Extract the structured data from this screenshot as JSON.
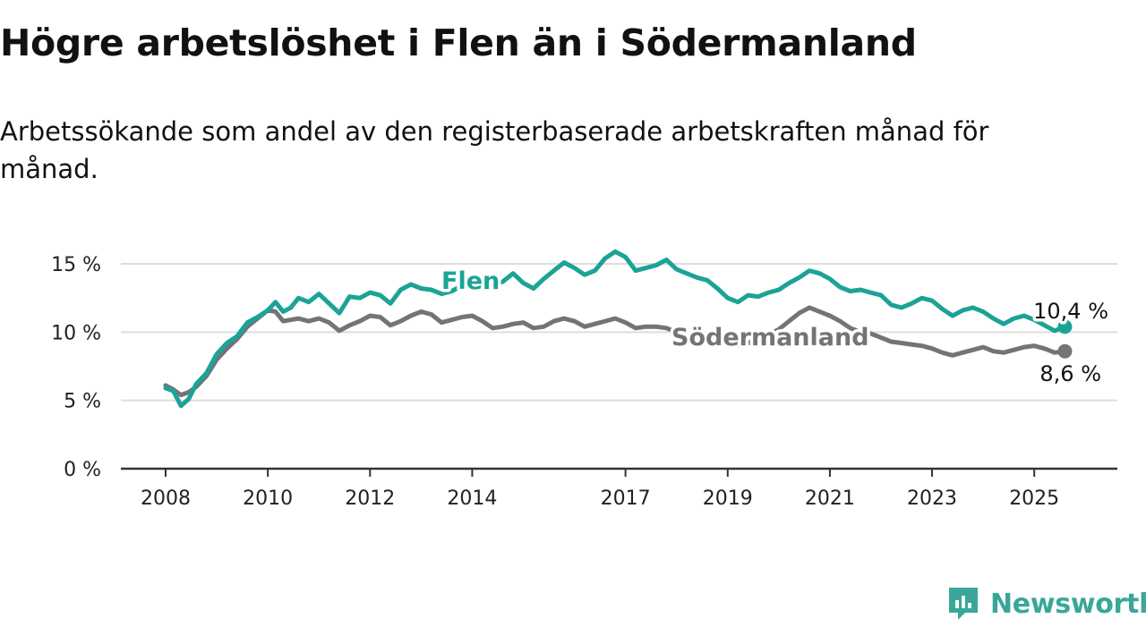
{
  "header": {
    "title": "Högre arbetslöshet i Flen än i Södermanland",
    "subtitle": "Arbetssökande som andel av den registerbaserade arbetskraften månad för månad."
  },
  "brand": {
    "name": "Newsworthy",
    "icon": "newsworthy-logo-icon"
  },
  "colors": {
    "flen": "#1ba396",
    "sodermanland": "#747378",
    "grid": "#dddddd",
    "axis": "#333333"
  },
  "chart_data": {
    "type": "line",
    "title": "Högre arbetslöshet i Flen än i Södermanland",
    "subtitle": "Arbetssökande som andel av den registerbaserade arbetskraften månad för månad.",
    "xlabel": "",
    "ylabel": "",
    "xlim": [
      2008,
      2025.75
    ],
    "ylim": [
      0,
      15
    ],
    "x_ticks": [
      2008,
      2010,
      2012,
      2014,
      2017,
      2019,
      2021,
      2023,
      2025
    ],
    "x_tick_labels": [
      "2008",
      "2010",
      "2012",
      "2014",
      "2017",
      "2019",
      "2021",
      "2023",
      "2025"
    ],
    "y_ticks": [
      0,
      5,
      10,
      15
    ],
    "y_tick_labels": [
      "0 %",
      "5 %",
      "10 %",
      "15 %"
    ],
    "grid": "horizontal",
    "legend": "direct-labels",
    "series": [
      {
        "name": "Flen",
        "end_label": "10,4 %",
        "x": [
          2008.0,
          2008.15,
          2008.3,
          2008.45,
          2008.6,
          2008.8,
          2009.0,
          2009.2,
          2009.4,
          2009.6,
          2009.8,
          2010.0,
          2010.15,
          2010.3,
          2010.45,
          2010.6,
          2010.8,
          2011.0,
          2011.2,
          2011.4,
          2011.6,
          2011.8,
          2012.0,
          2012.2,
          2012.4,
          2012.6,
          2012.8,
          2013.0,
          2013.2,
          2013.4,
          2013.6,
          2013.8,
          2014.0,
          2014.2,
          2014.4,
          2014.6,
          2014.8,
          2015.0,
          2015.2,
          2015.4,
          2015.6,
          2015.8,
          2016.0,
          2016.2,
          2016.4,
          2016.6,
          2016.8,
          2017.0,
          2017.2,
          2017.4,
          2017.6,
          2017.8,
          2018.0,
          2018.2,
          2018.4,
          2018.6,
          2018.8,
          2019.0,
          2019.2,
          2019.4,
          2019.6,
          2019.8,
          2020.0,
          2020.2,
          2020.4,
          2020.6,
          2020.8,
          2021.0,
          2021.2,
          2021.4,
          2021.6,
          2021.8,
          2022.0,
          2022.2,
          2022.4,
          2022.6,
          2022.8,
          2023.0,
          2023.2,
          2023.4,
          2023.6,
          2023.8,
          2024.0,
          2024.2,
          2024.4,
          2024.6,
          2024.8,
          2025.0,
          2025.2,
          2025.4,
          2025.6
        ],
        "values": [
          5.9,
          5.7,
          4.6,
          5.1,
          6.2,
          7.0,
          8.4,
          9.2,
          9.7,
          10.7,
          11.1,
          11.6,
          12.2,
          11.5,
          11.8,
          12.5,
          12.2,
          12.8,
          12.1,
          11.4,
          12.6,
          12.5,
          12.9,
          12.7,
          12.1,
          13.1,
          13.5,
          13.2,
          13.1,
          12.8,
          13.0,
          13.4,
          13.6,
          13.8,
          13.4,
          13.7,
          14.3,
          13.6,
          13.2,
          13.9,
          14.5,
          15.1,
          14.7,
          14.2,
          14.5,
          15.4,
          15.9,
          15.5,
          14.5,
          14.7,
          14.9,
          15.3,
          14.6,
          14.3,
          14.0,
          13.8,
          13.2,
          12.5,
          12.2,
          12.7,
          12.6,
          12.9,
          13.1,
          13.6,
          14.0,
          14.5,
          14.3,
          13.9,
          13.3,
          13.0,
          13.1,
          12.9,
          12.7,
          12.0,
          11.8,
          12.1,
          12.5,
          12.3,
          11.7,
          11.2,
          11.6,
          11.8,
          11.5,
          11.0,
          10.6,
          11.0,
          11.2,
          10.9,
          10.5,
          10.1,
          10.4
        ]
      },
      {
        "name": "Södermanland",
        "end_label": "8,6 %",
        "x": [
          2008.0,
          2008.15,
          2008.3,
          2008.45,
          2008.6,
          2008.8,
          2009.0,
          2009.2,
          2009.4,
          2009.6,
          2009.8,
          2010.0,
          2010.15,
          2010.3,
          2010.45,
          2010.6,
          2010.8,
          2011.0,
          2011.2,
          2011.4,
          2011.6,
          2011.8,
          2012.0,
          2012.2,
          2012.4,
          2012.6,
          2012.8,
          2013.0,
          2013.2,
          2013.4,
          2013.6,
          2013.8,
          2014.0,
          2014.2,
          2014.4,
          2014.6,
          2014.8,
          2015.0,
          2015.2,
          2015.4,
          2015.6,
          2015.8,
          2016.0,
          2016.2,
          2016.4,
          2016.6,
          2016.8,
          2017.0,
          2017.2,
          2017.4,
          2017.6,
          2017.8,
          2018.0,
          2018.2,
          2018.4,
          2018.6,
          2018.8,
          2019.0,
          2019.2,
          2019.4,
          2019.6,
          2019.8,
          2020.0,
          2020.2,
          2020.4,
          2020.6,
          2020.8,
          2021.0,
          2021.2,
          2021.4,
          2021.6,
          2021.8,
          2022.0,
          2022.2,
          2022.4,
          2022.6,
          2022.8,
          2023.0,
          2023.2,
          2023.4,
          2023.6,
          2023.8,
          2024.0,
          2024.2,
          2024.4,
          2024.6,
          2024.8,
          2025.0,
          2025.2,
          2025.4,
          2025.6
        ],
        "values": [
          6.1,
          5.8,
          5.4,
          5.6,
          6.0,
          6.8,
          8.0,
          8.8,
          9.5,
          10.4,
          11.0,
          11.6,
          11.5,
          10.8,
          10.9,
          11.0,
          10.8,
          11.0,
          10.7,
          10.1,
          10.5,
          10.8,
          11.2,
          11.1,
          10.5,
          10.8,
          11.2,
          11.5,
          11.3,
          10.7,
          10.9,
          11.1,
          11.2,
          10.8,
          10.3,
          10.4,
          10.6,
          10.7,
          10.3,
          10.4,
          10.8,
          11.0,
          10.8,
          10.4,
          10.6,
          10.8,
          11.0,
          10.7,
          10.3,
          10.4,
          10.4,
          10.3,
          10.0,
          9.8,
          9.6,
          9.5,
          9.6,
          9.3,
          9.0,
          9.2,
          9.5,
          9.8,
          10.2,
          10.8,
          11.4,
          11.8,
          11.5,
          11.2,
          10.8,
          10.3,
          10.0,
          9.9,
          9.6,
          9.3,
          9.2,
          9.1,
          9.0,
          8.8,
          8.5,
          8.3,
          8.5,
          8.7,
          8.9,
          8.6,
          8.5,
          8.7,
          8.9,
          9.0,
          8.8,
          8.5,
          8.6
        ]
      }
    ]
  }
}
